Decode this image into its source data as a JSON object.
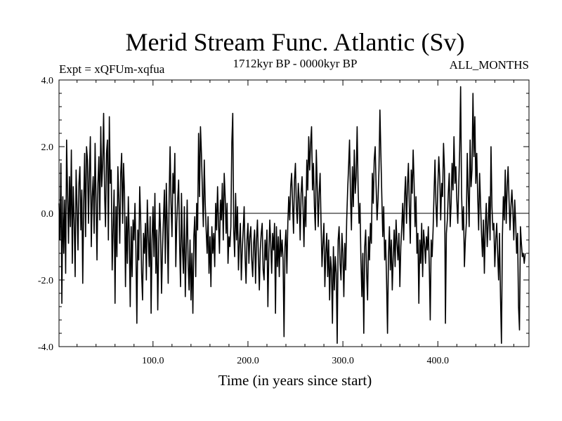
{
  "chart_data": {
    "type": "line",
    "title": "Merid Stream Func. Atlantic (Sv)",
    "experiment_label": "Expt = xQFUm-xqfua",
    "period_label": "1712kyr BP - 0000kyr BP",
    "season_label": "ALL_MONTHS",
    "xlabel": "Time (in years since start)",
    "ylabel": "",
    "xlim": [
      1,
      496
    ],
    "ylim": [
      -4.0,
      4.0
    ],
    "x_ticks": [
      100,
      200,
      300,
      400
    ],
    "x_tick_labels": [
      "100.0",
      "200.0",
      "300.0",
      "400.0"
    ],
    "y_ticks": [
      4,
      2,
      0,
      -2,
      -4
    ],
    "y_tick_labels": [
      "4.0",
      "2.0",
      "0.0",
      "-2.0",
      "-4.0"
    ],
    "zero_line": true,
    "grid": false,
    "series": [
      {
        "name": "Merid Stream Func. Atlantic",
        "x_start": 1,
        "x_step": 1,
        "values": [
          0.3,
          -0.8,
          1.5,
          -2.7,
          0.5,
          -1.2,
          0.4,
          -1.8,
          2.2,
          0.6,
          -0.9,
          1.1,
          -0.4,
          1.9,
          -1.5,
          0.8,
          -0.2,
          -1.9,
          1.3,
          0.2,
          -1.1,
          0.9,
          1.4,
          -0.5,
          0.7,
          -2.1,
          0.3,
          1.8,
          -0.7,
          2.0,
          1.6,
          -0.3,
          1.2,
          2.3,
          -1.0,
          0.5,
          1.1,
          -0.6,
          2.1,
          0.4,
          -1.4,
          0.9,
          1.7,
          -0.2,
          2.6,
          0.8,
          1.5,
          3.0,
          0.6,
          -0.4,
          1.8,
          2.2,
          -0.8,
          2.9,
          0.9,
          1.3,
          -1.7,
          -0.5,
          0.7,
          -2.7,
          0.2,
          -1.3,
          1.4,
          0.4,
          -0.9,
          1.2,
          1.8,
          -0.3,
          1.5,
          0.6,
          -2.2,
          -0.1,
          -1.5,
          0.5,
          -0.7,
          -2.8,
          -0.4,
          -1.9,
          -0.2,
          -0.8,
          0.3,
          -1.1,
          -3.3,
          -0.5,
          -1.4,
          0.8,
          -0.2,
          -1.8,
          -2.6,
          -0.6,
          -1.2,
          -0.3,
          -2.0,
          0.4,
          -0.7,
          -1.6,
          -0.1,
          -3.0,
          -0.8,
          0.2,
          -1.3,
          0.6,
          -1.8,
          -0.5,
          -2.9,
          -1.0,
          0.3,
          -0.6,
          -2.4,
          -1.1,
          -0.2,
          0.7,
          -1.5,
          0.9,
          -0.4,
          -2.1,
          0.5,
          2.0,
          0.3,
          -0.7,
          1.2,
          0.6,
          1.8,
          -1.6,
          -0.3,
          0.4,
          1.0,
          -0.9,
          -2.2,
          0.6,
          -1.0,
          -1.8,
          0.2,
          -2.5,
          -1.1,
          0.4,
          -1.5,
          -2.3,
          -0.8,
          -2.6,
          -1.2,
          -3.0,
          -0.7,
          -0.1,
          -1.9,
          0.3,
          -0.5,
          2.4,
          0.5,
          2.6,
          1.8,
          0.7,
          -0.4,
          1.6,
          0.3,
          -0.5,
          -1.2,
          -0.1,
          -1.8,
          -0.7,
          -2.2,
          -0.4,
          -1.2,
          -0.6,
          -1.6,
          0.3,
          -0.5,
          0.8,
          -0.3,
          -1.2,
          0.4,
          -0.2,
          0.9,
          -0.8,
          1.2,
          0.5,
          -0.6,
          0.3,
          -1.5,
          -0.7,
          -1.0,
          -0.4,
          2.1,
          3.0,
          -0.5,
          -1.3,
          0.6,
          -0.8,
          0.2,
          -1.7,
          -0.9,
          -0.3,
          -2.0,
          -1.1,
          -0.5,
          0.2,
          -1.3,
          -2.1,
          -0.8,
          -0.3,
          -1.5,
          -0.7,
          -0.4,
          -1.4,
          -1.9,
          -0.9,
          -0.5,
          -2.1,
          -0.8,
          -0.2,
          -1.3,
          -2.3,
          -1.1,
          -0.6,
          -0.3,
          -1.7,
          -2.0,
          -0.8,
          -1.4,
          -0.5,
          -2.8,
          -1.2,
          -0.2,
          -0.9,
          -1.8,
          -0.6,
          -1.1,
          -0.3,
          -3.0,
          -0.4,
          -1.6,
          -0.7,
          -1.9,
          -0.5,
          -1.3,
          -0.8,
          -1.4,
          -3.7,
          -1.0,
          -0.5,
          -1.8,
          -0.3,
          0.5,
          -0.2,
          0.8,
          1.2,
          0.3,
          -0.6,
          1.0,
          1.5,
          0.2,
          -0.3,
          0.9,
          0.4,
          -0.8,
          0.6,
          1.1,
          0.2,
          -1.0,
          0.5,
          -0.4,
          1.6,
          0.7,
          2.3,
          1.3,
          2.1,
          2.6,
          0.7,
          1.5,
          0.2,
          -0.5,
          1.9,
          0.8,
          -0.4,
          0.6,
          1.2,
          -0.3,
          -1.6,
          -0.9,
          -0.3,
          -2.2,
          -1.2,
          -0.6,
          -1.9,
          -0.8,
          -2.6,
          -1.3,
          -1.7,
          -3.3,
          -1.0,
          -2.3,
          -1.3,
          -1.8,
          -3.9,
          -0.8,
          -0.4,
          -1.5,
          -2.0,
          -0.6,
          -1.2,
          -2.5,
          -0.9,
          -1.7,
          -0.2,
          0.7,
          1.4,
          2.2,
          0.5,
          -0.5,
          1.4,
          0.2,
          1.9,
          0.6,
          1.1,
          2.6,
          0.8,
          -0.3,
          0.3,
          -1.4,
          -2.5,
          -1.2,
          -3.6,
          -1.0,
          -0.5,
          -1.8,
          -2.6,
          -0.7,
          -1.4,
          -0.3,
          -0.9,
          1.2,
          0.3,
          1.6,
          2.0,
          0.8,
          -0.2,
          0.4,
          1.3,
          3.1,
          1.8,
          0.5,
          -0.7,
          0.2,
          -1.4,
          -0.8,
          -2.0,
          -3.6,
          -1.3,
          -0.4,
          -1.7,
          -0.8,
          -2.3,
          -1.3,
          -0.5,
          -1.6,
          -0.2,
          -0.9,
          -1.4,
          -0.6,
          -2.2,
          -1.0,
          -0.4,
          0.3,
          -0.8,
          0.5,
          1.1,
          -0.3,
          0.8,
          1.5,
          0.2,
          -0.9,
          1.3,
          0.6,
          1.9,
          0.9,
          -0.4,
          0.5,
          -1.2,
          -0.6,
          -2.7,
          -0.8,
          -1.5,
          -0.3,
          -1.9,
          -0.5,
          -0.9,
          -1.5,
          -0.7,
          -1.1,
          -0.4,
          -1.6,
          -3.2,
          -0.8,
          -1.3,
          -0.5,
          0.6,
          1.6,
          0.3,
          -0.4,
          0.8,
          1.7,
          1.1,
          -0.2,
          0.9,
          0.5,
          2.1,
          1.3,
          -3.3,
          -0.6,
          -0.2,
          0.6,
          1.2,
          -0.4,
          0.3,
          1.5,
          0.7,
          2.3,
          0.9,
          1.4,
          0.4,
          -0.3,
          0.8,
          1.9,
          3.8,
          0.6,
          -0.5,
          0.2,
          -1.6,
          -0.8,
          -0.3,
          1.8,
          0.6,
          -0.4,
          2.2,
          0.8,
          1.3,
          3.6,
          1.7,
          2.9,
          0.9,
          1.8,
          0.5,
          -0.5,
          1.2,
          0.3,
          -0.6,
          -1.3,
          -0.2,
          -1.8,
          -0.4,
          0.3,
          -1.0,
          -0.3,
          0.5,
          -0.8,
          2.0,
          0.2,
          -0.5,
          -0.3,
          -1.6,
          -0.8,
          -0.3,
          -1.2,
          -2.0,
          -0.6,
          -2.5,
          -3.9,
          -0.7,
          0.5,
          -0.2,
          1.3,
          -0.3,
          0.8,
          1.4,
          0.4,
          -0.5,
          0.2,
          0.7,
          0.1,
          -0.8,
          0.4,
          -0.3,
          -1.2,
          -0.6,
          -2.8,
          -3.5,
          -0.4,
          -0.9,
          -1.3,
          -1.2,
          -1.5,
          -1.2
        ]
      }
    ]
  }
}
